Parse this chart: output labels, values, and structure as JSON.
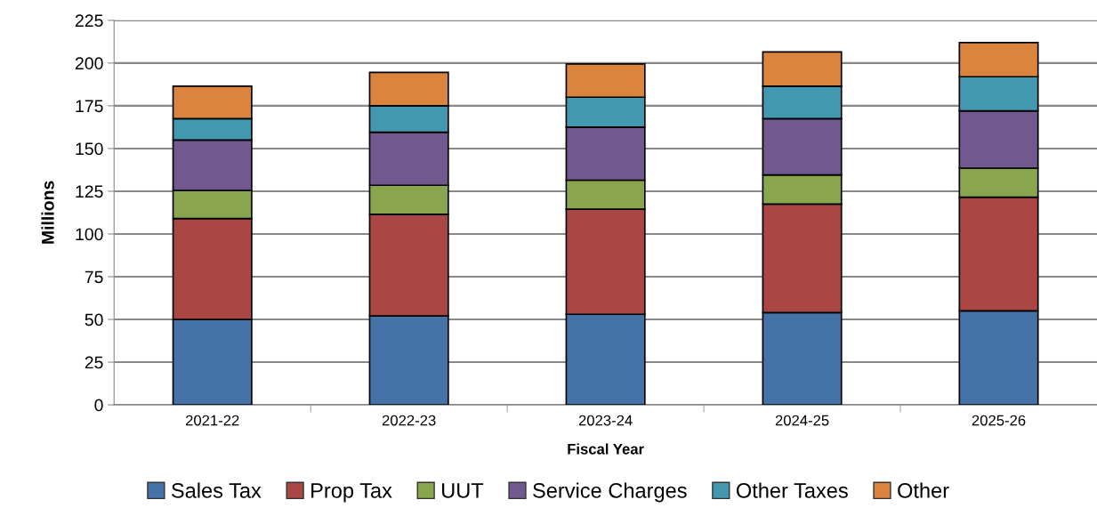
{
  "chart_data": {
    "type": "bar",
    "stacked": true,
    "xlabel": "Fiscal Year",
    "ylabel": "Millions",
    "categories": [
      "2021-22",
      "2022-23",
      "2023-24",
      "2024-25",
      "2025-26"
    ],
    "series": [
      {
        "name": "Sales Tax",
        "color": "#4572a7",
        "values": [
          50,
          52,
          53,
          54,
          55
        ]
      },
      {
        "name": "Prop Tax",
        "color": "#aa4643",
        "values": [
          59,
          59.5,
          61.5,
          63.5,
          66.5
        ]
      },
      {
        "name": "UUT",
        "color": "#89a54e",
        "values": [
          16.5,
          17,
          17,
          17,
          17
        ]
      },
      {
        "name": "Service Charges",
        "color": "#71588f",
        "values": [
          29.5,
          31,
          31,
          33,
          33.5
        ]
      },
      {
        "name": "Other Taxes",
        "color": "#4198af",
        "values": [
          12.5,
          15.5,
          17.5,
          19,
          20
        ]
      },
      {
        "name": "Other",
        "color": "#db843d",
        "values": [
          19,
          19.5,
          19.5,
          20,
          20
        ]
      }
    ],
    "ylim": [
      0,
      225
    ],
    "yticks": [
      0,
      25,
      50,
      75,
      100,
      125,
      150,
      175,
      200,
      225
    ],
    "grid": "y",
    "legend": "bottom"
  }
}
